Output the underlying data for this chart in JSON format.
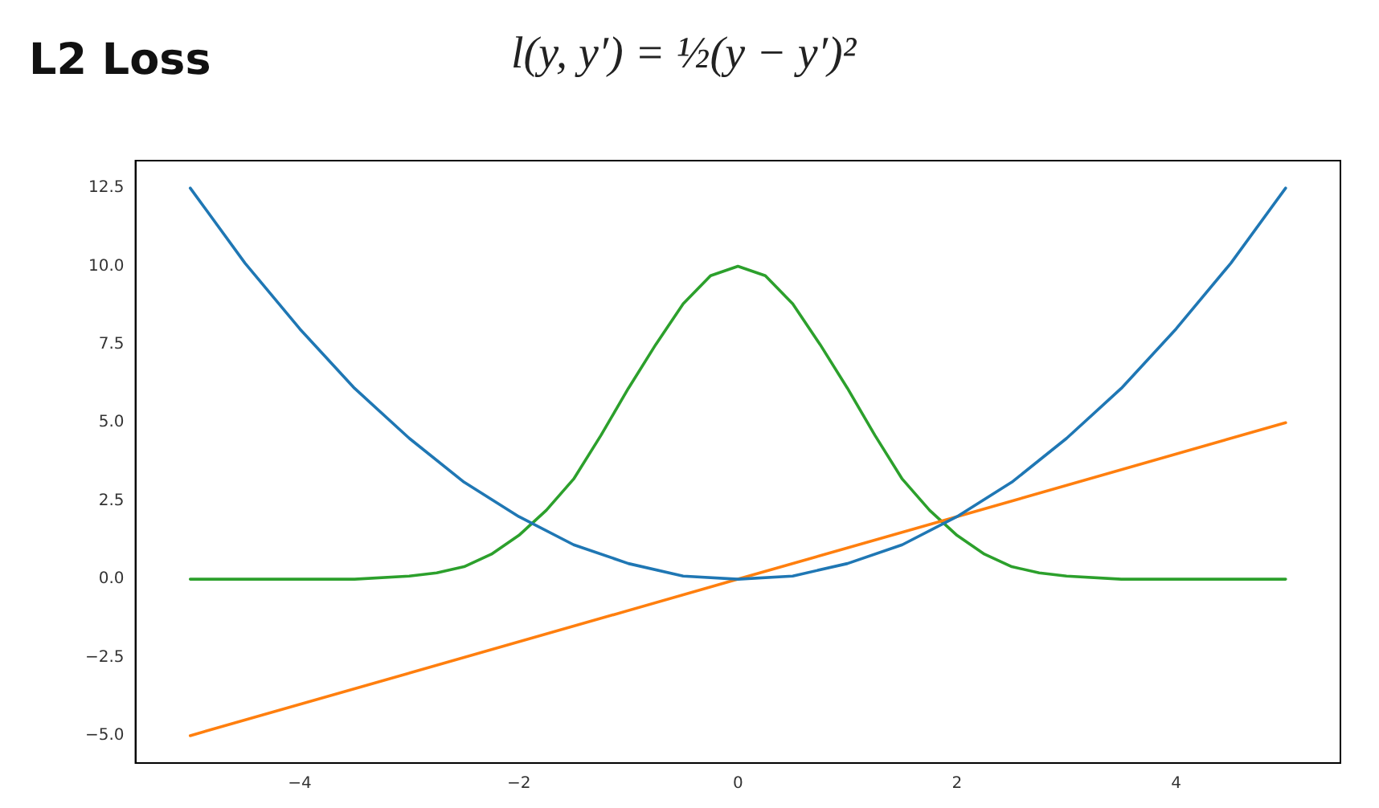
{
  "chart_data": {
    "type": "line",
    "title": "L2 Loss",
    "subtitle": "l(y, y′) = ½(y − y′)²",
    "xlim": [
      -5.5,
      5.5
    ],
    "xticks": [
      {
        "value": -4,
        "label": "−4"
      },
      {
        "value": -2,
        "label": "−2"
      },
      0,
      2,
      4
    ],
    "ylim": [
      -5.875,
      13.375
    ],
    "yticks": [
      {
        "value": -5,
        "label": "−5.0"
      },
      {
        "value": -2.5,
        "label": "−2.5"
      },
      {
        "value": 0,
        "label": "0.0"
      },
      {
        "value": 2.5,
        "label": "2.5"
      },
      {
        "value": 5,
        "label": "5.0"
      },
      {
        "value": 7.5,
        "label": "7.5"
      },
      {
        "value": 10,
        "label": "10.0"
      },
      {
        "value": 12.5,
        "label": "12.5"
      }
    ],
    "grid": false,
    "legend": false,
    "marker": "none",
    "line_style": "solid",
    "series": [
      {
        "color": "#1f77b4",
        "x": [
          -5,
          -4.5,
          -4,
          -3.5,
          -3,
          -2.5,
          -2,
          -1.5,
          -1,
          -0.5,
          0,
          0.5,
          1,
          1.5,
          2,
          2.5,
          3,
          3.5,
          4,
          4.5,
          5
        ],
        "values": [
          12.5,
          10.1,
          8,
          6.1,
          4.5,
          3.1,
          2,
          1.1,
          0.5,
          0.1,
          0,
          0.1,
          0.5,
          1.1,
          2,
          3.1,
          4.5,
          6.1,
          8,
          10.1,
          12.5
        ]
      },
      {
        "color": "#ff7f0e",
        "x": [
          -5,
          0,
          5
        ],
        "values": [
          -5,
          0,
          5
        ]
      },
      {
        "color": "#2ca02c",
        "x": [
          -5,
          -4,
          -3.5,
          -3,
          -2.75,
          -2.5,
          -2.25,
          -2,
          -1.75,
          -1.5,
          -1.25,
          -1,
          -0.75,
          -0.5,
          -0.25,
          0,
          0.25,
          0.5,
          0.75,
          1,
          1.25,
          1.5,
          1.75,
          2,
          2.25,
          2.5,
          2.75,
          3,
          3.5,
          4,
          5
        ],
        "values": [
          0,
          0,
          0,
          0.1,
          0.2,
          0.4,
          0.8,
          1.4,
          2.2,
          3.2,
          4.6,
          6.1,
          7.5,
          8.8,
          9.7,
          10,
          9.7,
          8.8,
          7.5,
          6.1,
          4.6,
          3.2,
          2.2,
          1.4,
          0.8,
          0.4,
          0.2,
          0.1,
          0,
          0,
          0
        ]
      }
    ]
  }
}
